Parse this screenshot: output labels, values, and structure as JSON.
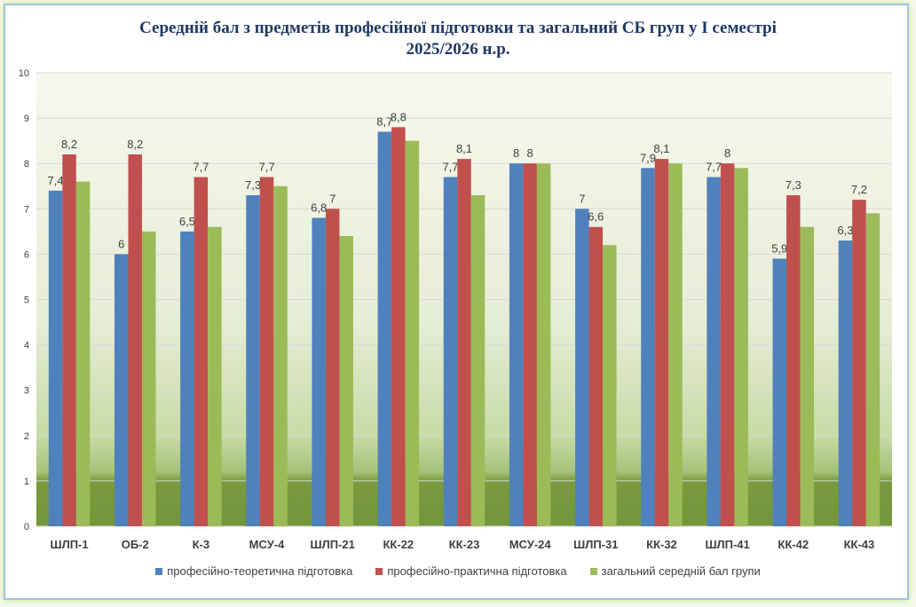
{
  "chart_data": {
    "type": "bar",
    "title": "Середній бал з предметів професійної підготовки та загальний СБ груп у І семестрі",
    "subtitle": "2025/2026 н.р.",
    "xlabel": "",
    "ylabel": "",
    "ylim": [
      0,
      10
    ],
    "yticks": [
      "0",
      "1",
      "2",
      "3",
      "4",
      "5",
      "6",
      "7",
      "8",
      "9",
      "10"
    ],
    "grid": true,
    "legend_position": "bottom",
    "categories": [
      "ШЛП-1",
      "ОБ-2",
      "К-3",
      "МСУ-4",
      "ШЛП-21",
      "КК-22",
      "КК-23",
      "МСУ-24",
      "ШЛП-31",
      "КК-32",
      "ШЛП-41",
      "КК-42",
      "КК-43"
    ],
    "series": [
      {
        "name": "професійно-теоретична підготовка",
        "color": "#4f81bd",
        "labels": true,
        "values": [
          7.4,
          6,
          6.5,
          7.3,
          6.8,
          8.7,
          7.7,
          8,
          7,
          7.9,
          7.7,
          5.9,
          6.3
        ]
      },
      {
        "name": "професійно-практична підготовка",
        "color": "#c0504d",
        "labels": true,
        "values": [
          8.2,
          8.2,
          7.7,
          7.7,
          7,
          8.8,
          8.1,
          8,
          6.6,
          8.1,
          8,
          7.3,
          7.2
        ]
      },
      {
        "name": "загальний середній бал групи",
        "color": "#9bbb59",
        "labels": false,
        "values": [
          7.6,
          6.5,
          6.6,
          7.5,
          6.4,
          8.5,
          7.3,
          8.0,
          6.2,
          8.0,
          7.9,
          6.6,
          6.9
        ]
      }
    ]
  }
}
